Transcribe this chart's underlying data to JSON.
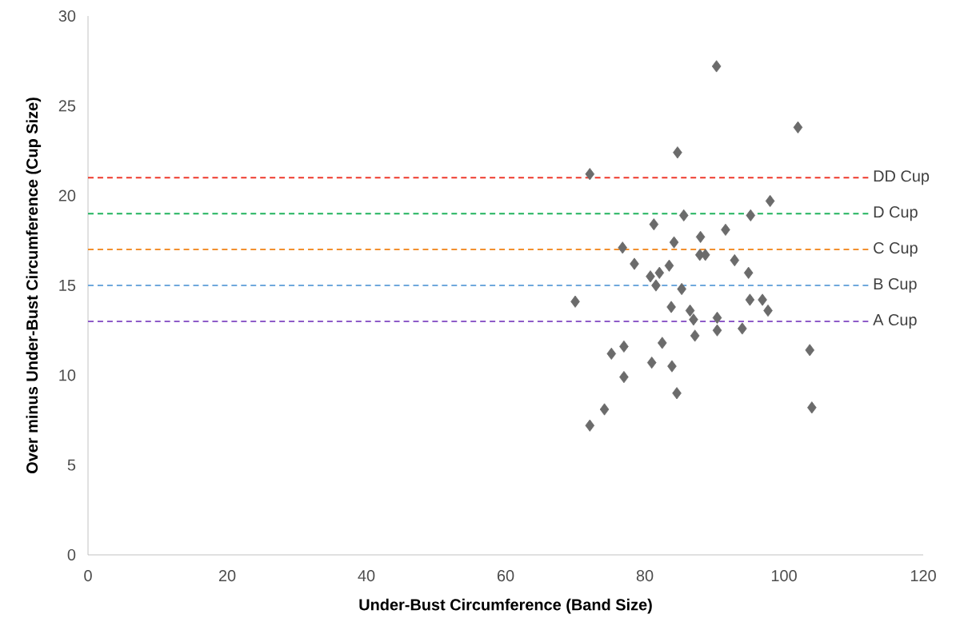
{
  "chart_data": {
    "type": "scatter",
    "xlabel": "Under-Bust Circumference (Band Size)",
    "ylabel": "Over minus Under-Bust Circumference (Cup Size)",
    "xlim": [
      0,
      120
    ],
    "xticks": [
      0,
      20,
      40,
      60,
      80,
      100,
      120
    ],
    "ylim": [
      0,
      30
    ],
    "yticks": [
      0,
      5,
      10,
      15,
      20,
      25,
      30
    ],
    "marker": "diamond",
    "grid": false,
    "series": [
      {
        "color": "#6b6b6b",
        "x": [
          90.3,
          102.0,
          84.7,
          72.1,
          98.0,
          85.6,
          95.2,
          81.3,
          91.6,
          88.0,
          84.2,
          76.8,
          87.9,
          88.7,
          92.9,
          78.5,
          83.5,
          94.9,
          82.1,
          80.8,
          81.6,
          85.3,
          70.0,
          95.1,
          96.9,
          97.7,
          83.8,
          86.5,
          87.0,
          90.4,
          90.4,
          94.0,
          87.2,
          82.5,
          77.0,
          75.2,
          103.7,
          81.0,
          83.9,
          77.0,
          84.6,
          74.2,
          104.0,
          72.1
        ],
        "values": [
          27.2,
          23.8,
          22.4,
          21.2,
          19.7,
          18.9,
          18.9,
          18.4,
          18.1,
          17.7,
          17.4,
          17.1,
          16.7,
          16.7,
          16.4,
          16.2,
          16.1,
          15.7,
          15.7,
          15.5,
          15.0,
          14.8,
          14.1,
          14.2,
          14.2,
          13.6,
          13.8,
          13.6,
          13.1,
          13.2,
          12.5,
          12.6,
          12.2,
          11.8,
          11.6,
          11.2,
          11.4,
          10.7,
          10.5,
          9.9,
          9.0,
          8.1,
          8.2,
          7.2
        ]
      }
    ],
    "ref_lines": [
      {
        "axis": "y",
        "value": 21,
        "label": "DD Cup",
        "color": "#ee3a2c",
        "line_style": "dashed"
      },
      {
        "axis": "y",
        "value": 19,
        "label": "D Cup",
        "color": "#22b35e",
        "line_style": "dashed"
      },
      {
        "axis": "y",
        "value": 17,
        "label": "C Cup",
        "color": "#f2902f",
        "line_style": "dashed"
      },
      {
        "axis": "y",
        "value": 15,
        "label": "B Cup",
        "color": "#6fa8dc",
        "line_style": "dashed"
      },
      {
        "axis": "y",
        "value": 13,
        "label": "A Cup",
        "color": "#8e5bc8",
        "line_style": "dashed"
      }
    ]
  }
}
